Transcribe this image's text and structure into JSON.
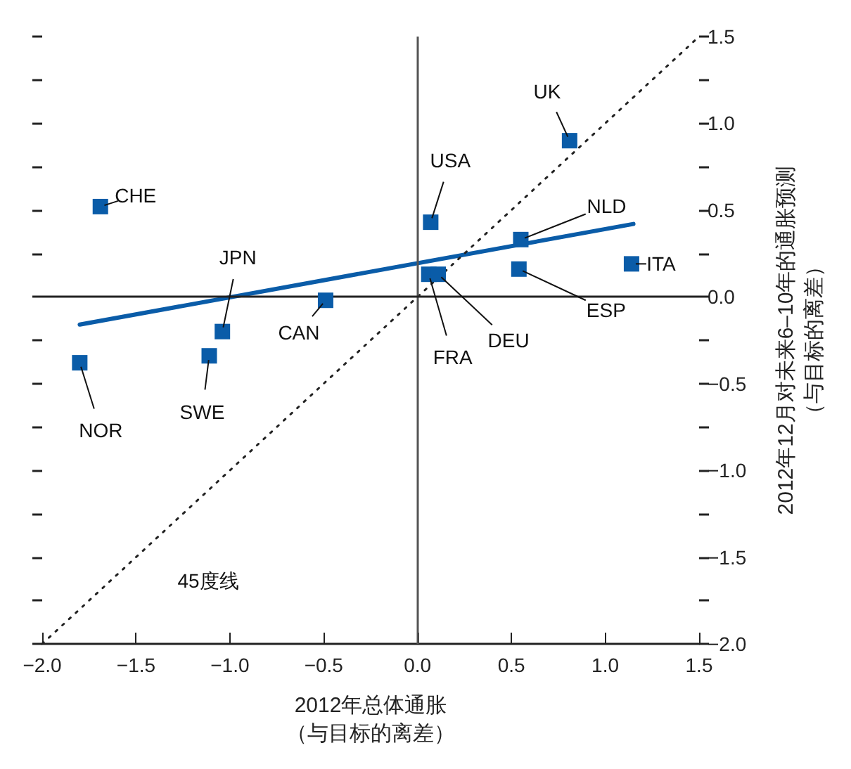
{
  "chart_data": {
    "type": "scatter",
    "xlabel": "2012年总体通胀（与目标的离差）",
    "ylabel": "2012年12月对未来6–10年的通胀预测（与目标的离差）",
    "x": [
      -1.69,
      -1.8,
      -1.11,
      -1.04,
      -0.49,
      0.07,
      0.06,
      0.11,
      0.55,
      0.54,
      0.81,
      1.14
    ],
    "series": [
      {
        "color": "#0a5ca8",
        "marker": "square",
        "values": [
          0.52,
          -0.38,
          -0.34,
          -0.2,
          -0.02,
          0.43,
          0.13,
          0.13,
          0.33,
          0.16,
          0.9,
          0.19
        ]
      },
      {
        "type": "line",
        "color": "#0a5ca8",
        "marker": "none",
        "x": [
          -1.8,
          1.15
        ],
        "values": [
          -0.16,
          0.42
        ]
      },
      {
        "type": "line",
        "color": "#222222",
        "marker": "none",
        "line_style": "dotted",
        "x": [
          -2.0,
          1.5
        ],
        "values": [
          -2.0,
          1.5
        ]
      }
    ],
    "xlim": [
      -2.0,
      1.5
    ],
    "xticks": [
      {
        "value": -2.0,
        "label": "−2.0"
      },
      {
        "value": -1.5,
        "label": "−1.5"
      },
      {
        "value": -1.0,
        "label": "−1.0"
      },
      {
        "value": -0.5,
        "label": "−0.5"
      },
      {
        "value": 0,
        "label": "0.0"
      },
      {
        "value": 0.5,
        "label": "0.5"
      },
      {
        "value": 1.0,
        "label": "1.0"
      },
      {
        "value": 1.5,
        "label": "1.5"
      }
    ],
    "ylim": [
      -2.0,
      1.5
    ],
    "yticks": [
      {
        "value": -2.0,
        "label": "−2.0"
      },
      {
        "value": -1.75,
        "label": null
      },
      {
        "value": -1.5,
        "label": "−1.5"
      },
      {
        "value": -1.25,
        "label": null
      },
      {
        "value": -1.0,
        "label": "−1.0"
      },
      {
        "value": -0.75,
        "label": null
      },
      {
        "value": -0.5,
        "label": "−0.5"
      },
      {
        "value": -0.25,
        "label": null
      },
      {
        "value": 0,
        "label": "0.0"
      },
      {
        "value": 0.25,
        "label": null
      },
      {
        "value": 0.5,
        "label": "0.5"
      },
      {
        "value": 0.75,
        "label": null
      },
      {
        "value": 1.0,
        "label": "1.0"
      },
      {
        "value": 1.25,
        "label": null
      },
      {
        "value": 1.5,
        "label": "1.5"
      }
    ],
    "ref_lines": [
      {
        "axis": "x",
        "value": 0,
        "color": "#555555"
      },
      {
        "axis": "y",
        "value": 0,
        "color": "#222222"
      }
    ],
    "annotations": [
      {
        "text": "CHE",
        "x": -1.69,
        "y": 0.52
      },
      {
        "text": "NOR",
        "x": -1.8,
        "y": -0.38
      },
      {
        "text": "SWE",
        "x": -1.11,
        "y": -0.34
      },
      {
        "text": "JPN",
        "x": -1.04,
        "y": -0.2
      },
      {
        "text": "CAN",
        "x": -0.49,
        "y": -0.02
      },
      {
        "text": "USA",
        "x": 0.07,
        "y": 0.43
      },
      {
        "text": "FRA",
        "x": 0.06,
        "y": 0.13
      },
      {
        "text": "DEU",
        "x": 0.11,
        "y": 0.13
      },
      {
        "text": "NLD",
        "x": 0.55,
        "y": 0.33
      },
      {
        "text": "ESP",
        "x": 0.54,
        "y": 0.16
      },
      {
        "text": "UK",
        "x": 0.81,
        "y": 0.9
      },
      {
        "text": "ITA",
        "x": 1.14,
        "y": 0.19
      },
      "45度线"
    ],
    "grid": false
  }
}
